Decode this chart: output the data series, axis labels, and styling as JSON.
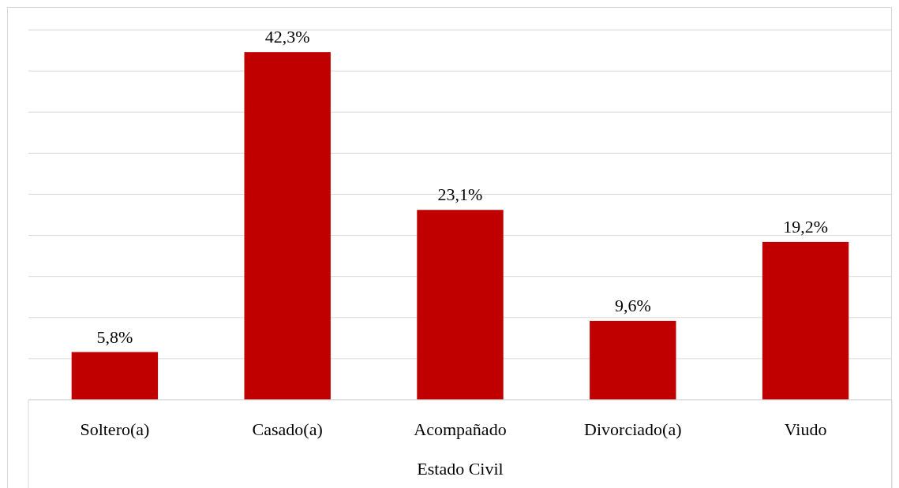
{
  "chart_data": {
    "type": "bar",
    "xlabel": "Estado Civil",
    "categories": [
      "Soltero(a)",
      "Casado(a)",
      "Acompañado",
      "Divorciado(a)",
      "Viudo"
    ],
    "values": [
      5.8,
      42.3,
      23.1,
      9.6,
      19.2
    ],
    "value_labels": [
      "5,8%",
      "42,3%",
      "23,1%",
      "9,6%",
      "19,2%"
    ],
    "color": "#c00000",
    "ylim": [
      0,
      45
    ],
    "yticks": [
      {
        "value": 0,
        "label": null
      },
      {
        "value": 5,
        "label": null
      },
      {
        "value": 10,
        "label": null
      },
      {
        "value": 15,
        "label": null
      },
      {
        "value": 20,
        "label": null
      },
      {
        "value": 25,
        "label": null
      },
      {
        "value": 30,
        "label": null
      },
      {
        "value": 35,
        "label": null
      },
      {
        "value": 40,
        "label": null
      },
      {
        "value": 45,
        "label": null
      }
    ],
    "tick_labels": "x",
    "grid": "y"
  }
}
